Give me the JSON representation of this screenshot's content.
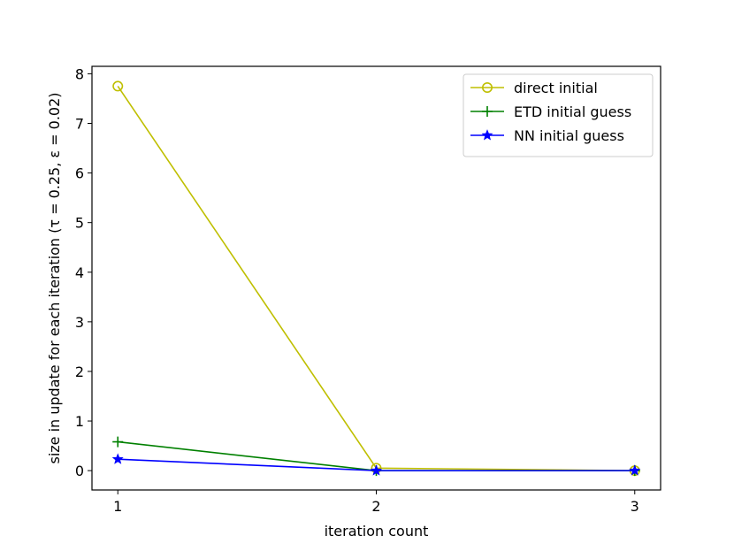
{
  "chart_data": {
    "type": "line",
    "title": "",
    "xlabel": "iteration count",
    "ylabel": "size in update for each iteration (τ = 0.25, ε = 0.02)",
    "x": [
      1,
      2,
      3
    ],
    "xticks": [
      1,
      2,
      3
    ],
    "yticks": [
      0,
      1,
      2,
      3,
      4,
      5,
      6,
      7,
      8
    ],
    "xlim": [
      0.9,
      3.1
    ],
    "ylim": [
      -0.39,
      8.15
    ],
    "grid": false,
    "legend_position": "top-right",
    "series": [
      {
        "name": "direct initial",
        "values": [
          7.75,
          0.05,
          0.0
        ],
        "color": "#bfbf00",
        "marker": "circle"
      },
      {
        "name": "ETD initial guess",
        "values": [
          0.58,
          0.0,
          0.0
        ],
        "color": "#008000",
        "marker": "plus"
      },
      {
        "name": "NN initial guess",
        "values": [
          0.23,
          0.0,
          0.0
        ],
        "color": "#0000ff",
        "marker": "star"
      }
    ]
  }
}
